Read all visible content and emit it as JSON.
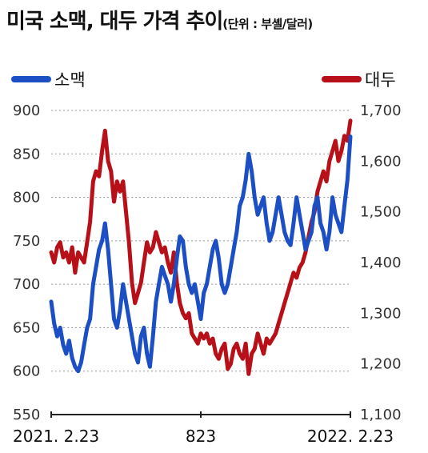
{
  "title": {
    "main": "미국 소맥, 대두 가격 추이",
    "unit": "(단위 : 부셸/달러)"
  },
  "colors": {
    "wheat": "#1d4fc4",
    "soybean": "#b81018",
    "grid": "#9a9a9a"
  },
  "chart_data": {
    "type": "line",
    "x_labels": [
      "2021. 2.23",
      "823",
      "2022. 2.23"
    ],
    "x_range": [
      0,
      100
    ],
    "grid": "horizontal dashed",
    "legend_placement": "top",
    "left_axis": {
      "ylim": [
        550,
        900
      ],
      "ticks": [
        900,
        850,
        800,
        750,
        700,
        650,
        600,
        550
      ],
      "tick_labels": [
        "900",
        "850",
        "800",
        "750",
        "700",
        "650",
        "600",
        "550"
      ]
    },
    "right_axis": {
      "ylim": [
        1100,
        1700
      ],
      "ticks": [
        1700,
        1600,
        1500,
        1400,
        1300,
        1200,
        1100
      ],
      "tick_labels": [
        "1,700",
        "1,600",
        "1,500",
        "1,400",
        "1,300",
        "1,200",
        "1,100"
      ]
    },
    "series": [
      {
        "name": "소맥",
        "axis": "left",
        "x": [
          0,
          1,
          2,
          3,
          4,
          5,
          6,
          7,
          8,
          9,
          10,
          11,
          12,
          13,
          14,
          15,
          16,
          17,
          18,
          19,
          20,
          21,
          22,
          23,
          24,
          25,
          26,
          27,
          28,
          29,
          30,
          31,
          32,
          33,
          34,
          35,
          36,
          37,
          38,
          39,
          40,
          41,
          42,
          43,
          44,
          45,
          46,
          47,
          48,
          49,
          50,
          51,
          52,
          53,
          54,
          55,
          56,
          57,
          58,
          59,
          60,
          61,
          62,
          63,
          64,
          65,
          66,
          67,
          68,
          69,
          70,
          71,
          72,
          73,
          74,
          75,
          76,
          77,
          78,
          79,
          80,
          81,
          82,
          83,
          84,
          85,
          86,
          87,
          88,
          89,
          90,
          91,
          92,
          93,
          94,
          95,
          96,
          97,
          98,
          99,
          100
        ],
        "values": [
          680,
          655,
          640,
          650,
          630,
          620,
          635,
          615,
          605,
          600,
          610,
          630,
          650,
          660,
          700,
          720,
          740,
          750,
          770,
          740,
          700,
          660,
          650,
          670,
          700,
          680,
          660,
          640,
          620,
          610,
          640,
          650,
          620,
          605,
          640,
          680,
          700,
          720,
          710,
          700,
          680,
          700,
          730,
          755,
          750,
          720,
          700,
          690,
          700,
          680,
          660,
          690,
          700,
          720,
          740,
          750,
          730,
          700,
          690,
          700,
          720,
          740,
          760,
          790,
          800,
          820,
          850,
          830,
          800,
          780,
          790,
          800,
          770,
          750,
          760,
          780,
          800,
          780,
          760,
          750,
          745,
          770,
          800,
          780,
          760,
          740,
          750,
          760,
          790,
          800,
          770,
          760,
          740,
          760,
          800,
          780,
          770,
          760,
          790,
          820,
          870
        ]
      },
      {
        "name": "대두",
        "axis": "right",
        "x": [
          0,
          1,
          2,
          3,
          4,
          5,
          6,
          7,
          8,
          9,
          10,
          11,
          12,
          13,
          14,
          15,
          16,
          17,
          18,
          19,
          20,
          21,
          22,
          23,
          24,
          25,
          26,
          27,
          28,
          29,
          30,
          31,
          32,
          33,
          34,
          35,
          36,
          37,
          38,
          39,
          40,
          41,
          42,
          43,
          44,
          45,
          46,
          47,
          48,
          49,
          50,
          51,
          52,
          53,
          54,
          55,
          56,
          57,
          58,
          59,
          60,
          61,
          62,
          63,
          64,
          65,
          66,
          67,
          68,
          69,
          70,
          71,
          72,
          73,
          74,
          75,
          76,
          77,
          78,
          79,
          80,
          81,
          82,
          83,
          84,
          85,
          86,
          87,
          88,
          89,
          90,
          91,
          92,
          93,
          94,
          95,
          96,
          97,
          98,
          99,
          100
        ],
        "values": [
          1420,
          1400,
          1430,
          1440,
          1410,
          1420,
          1400,
          1430,
          1380,
          1420,
          1410,
          1400,
          1440,
          1480,
          1560,
          1580,
          1570,
          1620,
          1660,
          1600,
          1580,
          1520,
          1560,
          1540,
          1560,
          1500,
          1440,
          1360,
          1320,
          1340,
          1360,
          1400,
          1440,
          1420,
          1430,
          1460,
          1440,
          1420,
          1430,
          1400,
          1380,
          1420,
          1360,
          1320,
          1300,
          1290,
          1300,
          1260,
          1250,
          1240,
          1260,
          1250,
          1260,
          1240,
          1250,
          1220,
          1210,
          1230,
          1240,
          1190,
          1200,
          1230,
          1240,
          1220,
          1210,
          1240,
          1180,
          1220,
          1230,
          1260,
          1240,
          1220,
          1250,
          1240,
          1250,
          1260,
          1280,
          1300,
          1320,
          1340,
          1360,
          1380,
          1370,
          1390,
          1400,
          1420,
          1450,
          1480,
          1500,
          1540,
          1560,
          1580,
          1560,
          1600,
          1620,
          1640,
          1600,
          1620,
          1650,
          1640,
          1680
        ]
      }
    ]
  }
}
